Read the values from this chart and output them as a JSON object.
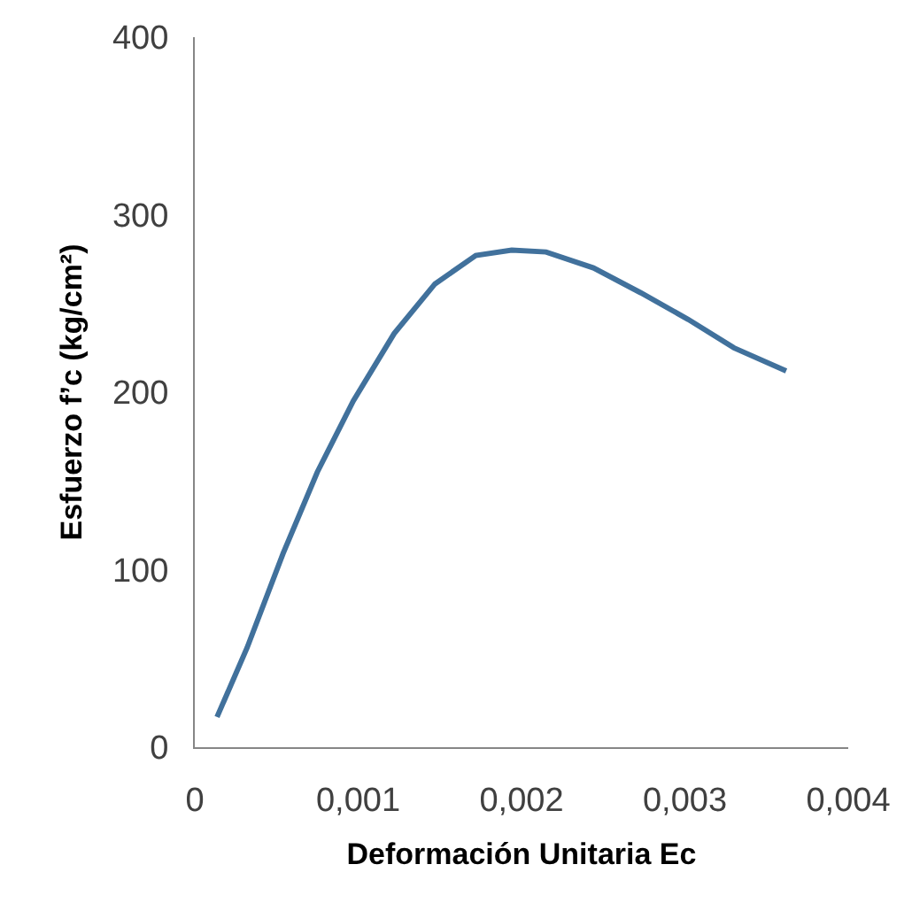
{
  "chart_data": {
    "type": "line",
    "xlabel": "Deformación Unitaria Ec",
    "ylabel": "Esfuerzo f’c (kg/cm²)",
    "xlim": [
      0,
      0.004
    ],
    "xticks": [
      0,
      {
        "value": 0.001,
        "label": "0,001"
      },
      {
        "value": 0.002,
        "label": "0,002"
      },
      {
        "value": 0.003,
        "label": "0,003"
      },
      {
        "value": 0.004,
        "label": "0,004"
      }
    ],
    "ylim": [
      0,
      400
    ],
    "yticks": [
      0,
      100,
      200,
      300,
      400
    ],
    "marker": "none",
    "line_style": "solid",
    "series": [
      {
        "color": "#41719c",
        "x": [
          0.000136,
          0.00032,
          0.00054,
          0.00075,
          0.00097,
          0.00122,
          0.00147,
          0.00172,
          0.00194,
          0.00215,
          0.00244,
          0.00273,
          0.00302,
          0.0033,
          0.00362
        ],
        "values": [
          17,
          56,
          109,
          155,
          195,
          233,
          261,
          277,
          280,
          279,
          270,
          256,
          241,
          225,
          212
        ]
      }
    ]
  }
}
